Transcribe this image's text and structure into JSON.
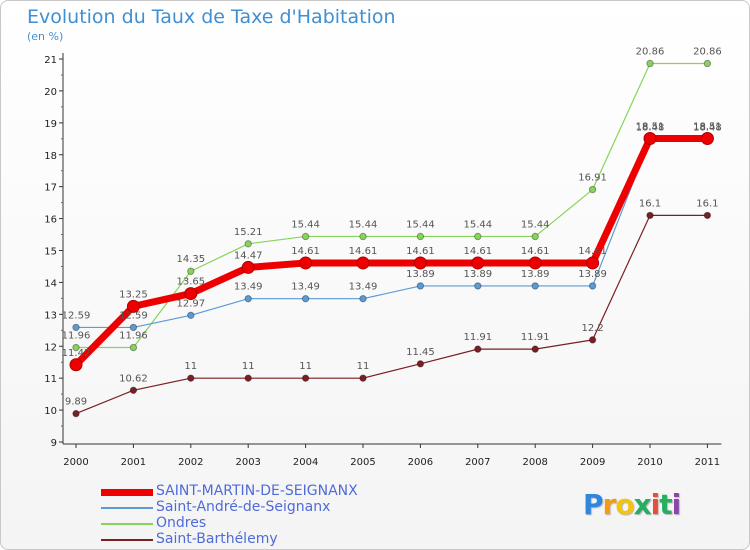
{
  "title": "Evolution du Taux de Taxe d'Habitation",
  "unit": "(en %)",
  "chart_data": {
    "type": "line",
    "x": [
      "2000",
      "2001",
      "2002",
      "2003",
      "2004",
      "2005",
      "2006",
      "2007",
      "2008",
      "2009",
      "2010",
      "2011"
    ],
    "ylim": [
      9,
      21
    ],
    "yticks": [
      9,
      10,
      11,
      12,
      13,
      14,
      15,
      16,
      17,
      18,
      19,
      20,
      21
    ],
    "grid": false,
    "legend_position": "bottom-left",
    "series": [
      {
        "name": "SAINT-MARTIN-DE-SEIGNANX",
        "color": "#ee0000",
        "values": [
          11.42,
          13.25,
          13.65,
          14.47,
          14.61,
          14.61,
          14.61,
          14.61,
          14.61,
          14.61,
          18.51,
          18.51
        ],
        "labels": [
          "11.42",
          "13.25",
          "13.65",
          "14.47",
          "14.61",
          "14.61",
          "14.61",
          "14.61",
          "14.61",
          "14.61",
          "18.51",
          "18.51"
        ]
      },
      {
        "name": "Saint-André-de-Seignanx",
        "color": "#5b9bd5",
        "values": [
          12.59,
          12.59,
          12.97,
          13.49,
          13.49,
          13.49,
          13.89,
          13.89,
          13.89,
          13.89,
          18.48,
          18.48
        ],
        "labels": [
          "12.59",
          "12.59",
          "12.97",
          "13.49",
          "13.49",
          "13.49",
          "13.89",
          "13.89",
          "13.89",
          "13.89",
          "18.48",
          "18.48"
        ]
      },
      {
        "name": "Ondres",
        "color": "#86d45a",
        "values": [
          11.96,
          11.96,
          14.35,
          15.21,
          15.44,
          15.44,
          15.44,
          15.44,
          15.44,
          16.91,
          20.86,
          20.86
        ],
        "labels": [
          "11.96",
          "11.96",
          "14.35",
          "15.21",
          "15.44",
          "15.44",
          "15.44",
          "15.44",
          "15.44",
          "16.91",
          "20.86",
          "20.86"
        ]
      },
      {
        "name": "Saint-Barthélemy",
        "color": "#7a1f24",
        "values": [
          9.89,
          10.62,
          11,
          11,
          11,
          11,
          11.45,
          11.91,
          11.91,
          12.2,
          16.1,
          16.1
        ],
        "labels": [
          "9.89",
          "10.62",
          "11",
          "11",
          "11",
          "11",
          "11.45",
          "11.91",
          "11.91",
          "12.2",
          "16.1",
          "16.1"
        ]
      }
    ]
  },
  "logo": {
    "letters": [
      "P",
      "r",
      "o",
      "x",
      "i",
      "t",
      "i"
    ],
    "colors": [
      "#2e86de",
      "#f39c12",
      "#f1c40f",
      "#27ae60",
      "#e74c3c",
      "#27ae60",
      "#8e44ad"
    ]
  }
}
